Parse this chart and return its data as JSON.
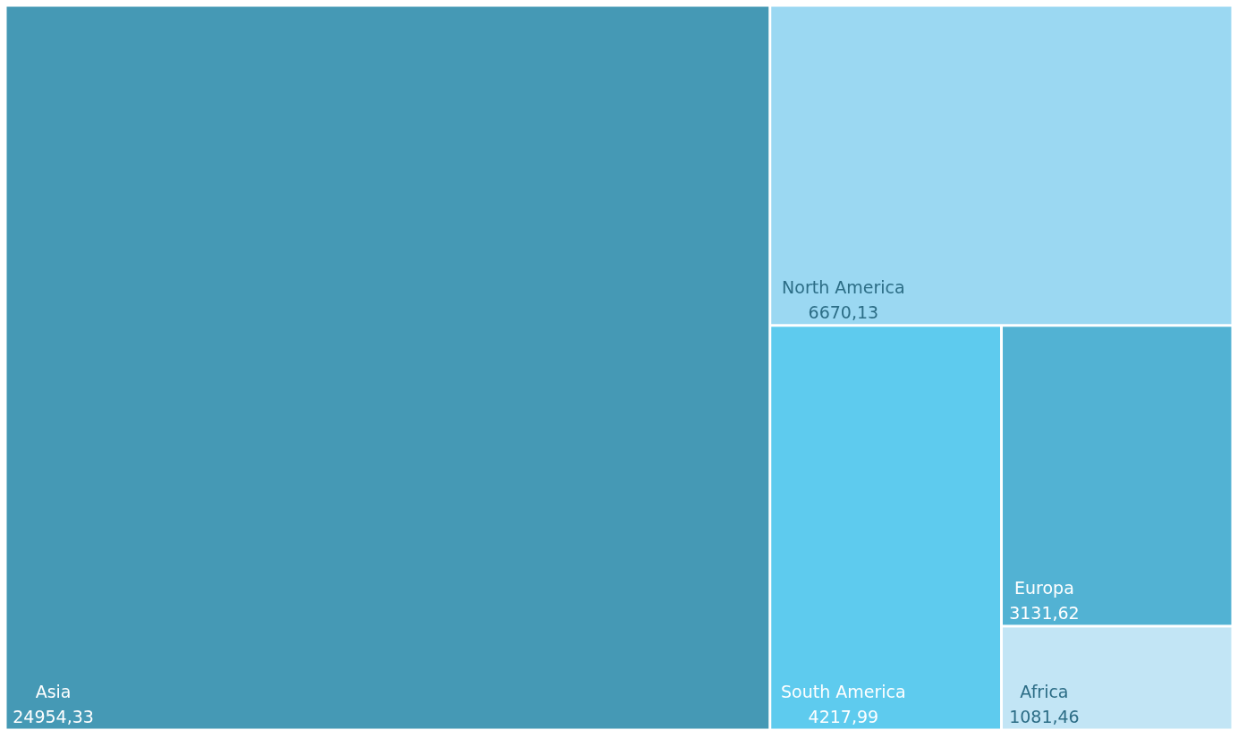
{
  "chart_data": {
    "type": "other",
    "categories": [
      "Asia",
      "North America",
      "South America",
      "Europa",
      "Africa"
    ],
    "values": [
      24954.33,
      6670.13,
      4217.99,
      3131.62,
      1081.46
    ],
    "value_labels": [
      "24954,33",
      "6670,13",
      "4217,99",
      "3131,62",
      "1081,46"
    ],
    "colors": [
      "#4599b5",
      "#9bd8f2",
      "#5ecbee",
      "#52b2d3",
      "#c2e5f5"
    ]
  }
}
